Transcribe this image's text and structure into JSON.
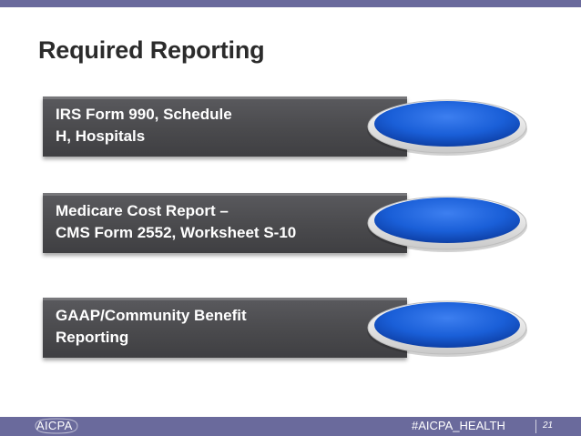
{
  "slide": {
    "title": "Required Reporting",
    "items": [
      {
        "label": "IRS Form 990, Schedule\nH, Hospitals"
      },
      {
        "label": "Medicare Cost Report –\nCMS Form 2552, Worksheet S-10"
      },
      {
        "label": "GAAP/Community Benefit\nReporting"
      }
    ]
  },
  "footer": {
    "logo": "AICPA",
    "hashtag": "#AICPA_HEALTH",
    "page_number": "21"
  },
  "colors": {
    "accent_bar": "#6a6a9c",
    "item_bar": "#4a4a4d",
    "disc_blue": "#1a5fd8",
    "title_text": "#2b2b2b"
  }
}
